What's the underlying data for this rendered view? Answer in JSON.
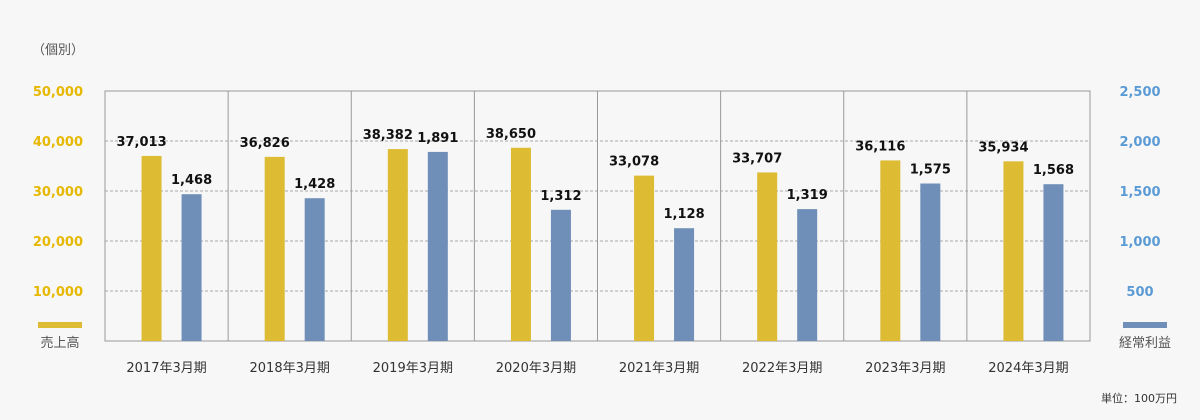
{
  "chart_data": {
    "type": "bar",
    "note_top": "（個別）",
    "unit_note": "単位：100万円",
    "categories": [
      "2017年3月期",
      "2018年3月期",
      "2019年3月期",
      "2020年3月期",
      "2021年3月期",
      "2022年3月期",
      "2023年3月期",
      "2024年3月期"
    ],
    "series": [
      {
        "name": "売上高",
        "axis": "left",
        "color": "#ddbb33",
        "values": [
          37013,
          36826,
          38382,
          38650,
          33078,
          33707,
          36116,
          35934
        ],
        "labels": [
          "37,013",
          "36,826",
          "38,382",
          "38,650",
          "33,078",
          "33,707",
          "36,116",
          "35,934"
        ]
      },
      {
        "name": "経常利益",
        "axis": "right",
        "color": "#6f8fb8",
        "values": [
          1468,
          1428,
          1891,
          1312,
          1128,
          1319,
          1575,
          1568
        ],
        "labels": [
          "1,468",
          "1,428",
          "1,891",
          "1,312",
          "1,128",
          "1,319",
          "1,575",
          "1,568"
        ]
      }
    ],
    "y_left": {
      "ylim": [
        0,
        50000
      ],
      "ticks": [
        10000,
        20000,
        30000,
        40000,
        50000
      ],
      "tick_labels": [
        "10,000",
        "20,000",
        "30,000",
        "40,000",
        "50,000"
      ],
      "color": "#e6b800"
    },
    "y_right": {
      "ylim": [
        0,
        2500
      ],
      "ticks": [
        500,
        1000,
        1500,
        2000,
        2500
      ],
      "tick_labels": [
        "500",
        "1,000",
        "1,500",
        "2,000",
        "2,500"
      ],
      "color": "#5b9bd5"
    },
    "grid": true,
    "grid_style": "dashed",
    "legend": "bottom-corners"
  }
}
